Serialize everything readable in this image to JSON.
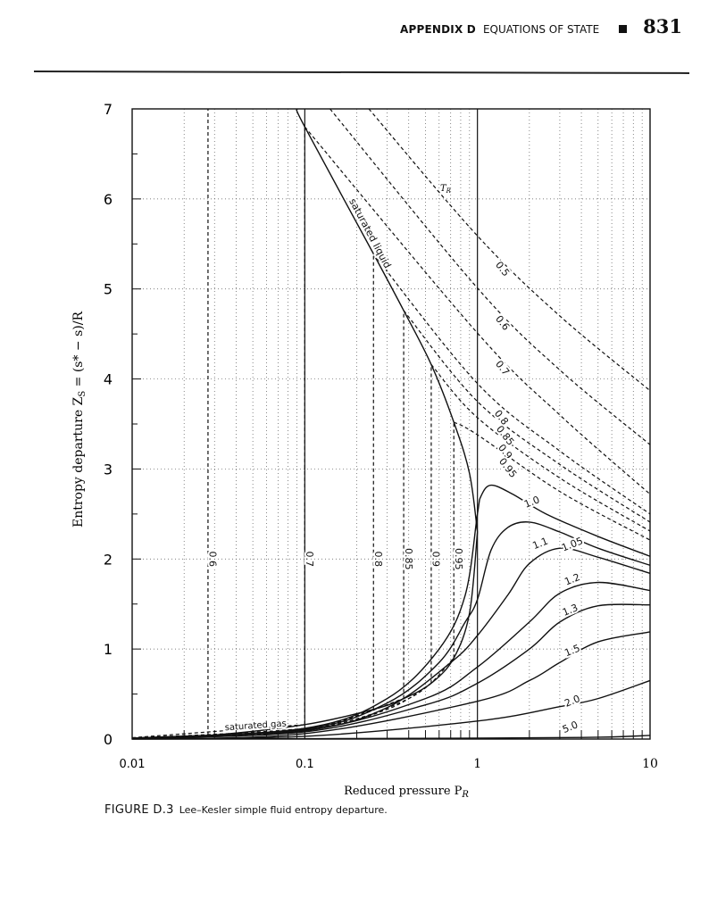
{
  "header": {
    "appendix": "APPENDIX D",
    "section": "EQUATIONS OF STATE",
    "page_number": "831"
  },
  "caption": {
    "figure_label": "FIGURE D.3",
    "text": "Lee–Kesler simple fluid entropy departure."
  },
  "chart_data": {
    "type": "line",
    "xlabel": "Reduced pressure P",
    "xlabel_sub": "R",
    "ylabel": "Entropy departure Z",
    "ylabel_sub": "S",
    "ylabel_expr": " = (s* − s)/R",
    "x_scale": "log",
    "xlim": [
      0.01,
      10
    ],
    "ylim": [
      0,
      7
    ],
    "x_ticks": [
      "0.01",
      "0.1",
      "1",
      "10"
    ],
    "y_ticks": [
      "0",
      "1",
      "2",
      "3",
      "4",
      "5",
      "6",
      "7"
    ],
    "grid": true,
    "parameter_label": "T",
    "parameter_label_sub": "R",
    "saturated_liquid": {
      "label": "saturated liquid",
      "points": [
        [
          0.09,
          7.0
        ],
        [
          0.1,
          6.8
        ],
        [
          0.25,
          5.39
        ],
        [
          0.374,
          4.76
        ],
        [
          0.54,
          4.16
        ],
        [
          0.73,
          3.52
        ],
        [
          0.9,
          2.95
        ],
        [
          1.0,
          2.3
        ]
      ]
    },
    "saturated_gas": {
      "label": "saturated gas",
      "points": [
        [
          0.01,
          0.01
        ],
        [
          0.0275,
          0.04
        ],
        [
          0.1,
          0.16
        ],
        [
          0.25,
          0.33
        ],
        [
          0.374,
          0.45
        ],
        [
          0.54,
          0.62
        ],
        [
          0.73,
          0.9
        ],
        [
          0.9,
          1.4
        ],
        [
          1.0,
          2.3
        ]
      ]
    },
    "subcritical_series": [
      {
        "name": "0.5",
        "liquid": [
          [
            0.235,
            7.0
          ],
          [
            1,
            5.59
          ],
          [
            3,
            4.7
          ],
          [
            10,
            3.87
          ]
        ],
        "label_at": [
          1.35,
          5.2
        ]
      },
      {
        "name": "0.6",
        "psat": 0.0275,
        "vapor": [
          [
            0.01,
            0.01
          ],
          [
            0.0275,
            0.04
          ]
        ],
        "liquid": [
          [
            0.14,
            7.0
          ],
          [
            1,
            5.01
          ],
          [
            3,
            4.1
          ],
          [
            10,
            3.27
          ]
        ],
        "label_at": [
          1.35,
          4.6
        ],
        "psat_label_at": [
          0.0275,
          2.0
        ]
      },
      {
        "name": "0.7",
        "psat": 0.1,
        "vapor": [
          [
            0.01,
            0.015
          ],
          [
            0.1,
            0.16
          ]
        ],
        "liquid": [
          [
            0.1,
            6.8
          ],
          [
            1,
            4.51
          ],
          [
            3,
            3.6
          ],
          [
            10,
            2.72
          ]
        ],
        "label_at": [
          1.35,
          4.1
        ],
        "psat_label_at": [
          0.1,
          2.0
        ]
      },
      {
        "name": "0.8",
        "psat": 0.25,
        "vapor": [
          [
            0.01,
            0.012
          ],
          [
            0.1,
            0.12
          ],
          [
            0.25,
            0.33
          ]
        ],
        "liquid": [
          [
            0.25,
            5.39
          ],
          [
            1,
            3.95
          ],
          [
            3,
            3.2
          ],
          [
            10,
            2.5
          ]
        ],
        "label_at": [
          1.33,
          3.55
        ],
        "psat_label_at": [
          0.25,
          2.0
        ]
      },
      {
        "name": "0.85",
        "psat": 0.374,
        "vapor": [
          [
            0.01,
            0.011
          ],
          [
            0.1,
            0.11
          ],
          [
            0.374,
            0.45
          ]
        ],
        "liquid": [
          [
            0.374,
            4.76
          ],
          [
            1,
            3.75
          ],
          [
            3,
            3.05
          ],
          [
            10,
            2.41
          ]
        ],
        "label_at": [
          1.4,
          3.35
        ],
        "psat_label_at": [
          0.374,
          2.0
        ]
      },
      {
        "name": "0.9",
        "psat": 0.54,
        "vapor": [
          [
            0.01,
            0.01
          ],
          [
            0.1,
            0.1
          ],
          [
            0.3,
            0.33
          ],
          [
            0.54,
            0.62
          ]
        ],
        "liquid": [
          [
            0.54,
            4.16
          ],
          [
            1,
            3.57
          ],
          [
            3,
            2.9
          ],
          [
            10,
            2.31
          ]
        ],
        "label_at": [
          1.4,
          3.17
        ],
        "psat_label_at": [
          0.54,
          2.0
        ]
      },
      {
        "name": "0.95",
        "psat": 0.73,
        "vapor": [
          [
            0.01,
            0.01
          ],
          [
            0.1,
            0.1
          ],
          [
            0.4,
            0.45
          ],
          [
            0.73,
            0.9
          ]
        ],
        "liquid": [
          [
            0.73,
            3.52
          ],
          [
            1,
            3.38
          ],
          [
            3,
            2.75
          ],
          [
            10,
            2.21
          ]
        ],
        "label_at": [
          1.45,
          2.99
        ],
        "psat_label_at": [
          0.73,
          2.0
        ]
      }
    ],
    "supercritical_series": [
      {
        "name": "1.0",
        "points": [
          [
            0.01,
            0.01
          ],
          [
            0.1,
            0.12
          ],
          [
            0.3,
            0.45
          ],
          [
            0.6,
            1.0
          ],
          [
            0.85,
            1.6
          ],
          [
            1.0,
            2.5
          ],
          [
            1.05,
            2.7
          ],
          [
            1.2,
            2.82
          ],
          [
            1.6,
            2.72
          ],
          [
            2.5,
            2.5
          ],
          [
            5,
            2.25
          ],
          [
            10,
            2.03
          ]
        ],
        "label_at": [
          2.1,
          2.6
        ]
      },
      {
        "name": "1.05",
        "points": [
          [
            0.01,
            0.01
          ],
          [
            0.1,
            0.11
          ],
          [
            0.3,
            0.4
          ],
          [
            0.6,
            0.85
          ],
          [
            0.85,
            1.3
          ],
          [
            1.0,
            1.55
          ],
          [
            1.2,
            2.1
          ],
          [
            1.5,
            2.35
          ],
          [
            2,
            2.41
          ],
          [
            3,
            2.3
          ],
          [
            5,
            2.12
          ],
          [
            10,
            1.93
          ]
        ],
        "label_at": [
          3.6,
          2.13
        ]
      },
      {
        "name": "1.1",
        "points": [
          [
            0.01,
            0.01
          ],
          [
            0.1,
            0.1
          ],
          [
            0.3,
            0.35
          ],
          [
            0.7,
            0.85
          ],
          [
            1,
            1.15
          ],
          [
            1.5,
            1.6
          ],
          [
            2,
            1.95
          ],
          [
            3,
            2.12
          ],
          [
            5,
            2.02
          ],
          [
            10,
            1.84
          ]
        ],
        "label_at": [
          2.35,
          2.14
        ]
      },
      {
        "name": "1.2",
        "points": [
          [
            0.01,
            0.01
          ],
          [
            0.1,
            0.09
          ],
          [
            0.5,
            0.45
          ],
          [
            1,
            0.8
          ],
          [
            2,
            1.3
          ],
          [
            3,
            1.62
          ],
          [
            5,
            1.74
          ],
          [
            10,
            1.65
          ]
        ],
        "label_at": [
          3.6,
          1.74
        ]
      },
      {
        "name": "1.3",
        "points": [
          [
            0.01,
            0.01
          ],
          [
            0.1,
            0.08
          ],
          [
            0.5,
            0.38
          ],
          [
            1,
            0.62
          ],
          [
            2,
            1.0
          ],
          [
            3,
            1.3
          ],
          [
            5,
            1.48
          ],
          [
            10,
            1.49
          ]
        ],
        "label_at": [
          3.5,
          1.4
        ]
      },
      {
        "name": "1.5",
        "points": [
          [
            0.01,
            0.005
          ],
          [
            0.1,
            0.06
          ],
          [
            1,
            0.42
          ],
          [
            2,
            0.65
          ],
          [
            3,
            0.85
          ],
          [
            5,
            1.08
          ],
          [
            10,
            1.19
          ]
        ],
        "label_at": [
          3.6,
          0.95
        ]
      },
      {
        "name": "2.0",
        "points": [
          [
            0.01,
            0.003
          ],
          [
            0.1,
            0.03
          ],
          [
            1,
            0.2
          ],
          [
            3,
            0.36
          ],
          [
            5,
            0.45
          ],
          [
            10,
            0.65
          ]
        ],
        "label_at": [
          3.6,
          0.39
        ]
      },
      {
        "name": "5.0",
        "points": [
          [
            0.01,
            0.0
          ],
          [
            1,
            0.01
          ],
          [
            5,
            0.02
          ],
          [
            10,
            0.04
          ]
        ],
        "label_at": [
          3.5,
          0.1
        ]
      }
    ]
  }
}
